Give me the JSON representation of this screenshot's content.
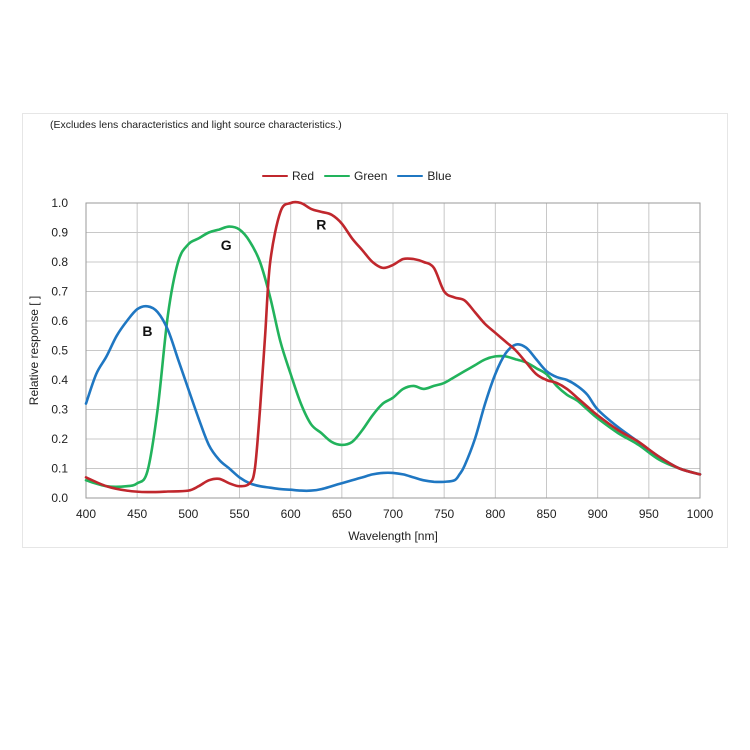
{
  "note": "(Excludes lens characteristics and light source characteristics.)",
  "chart_data": {
    "type": "line",
    "xlabel": "Wavelength [nm]",
    "ylabel": "Relative response [ ]",
    "xlim": [
      400,
      1000
    ],
    "ylim": [
      0.0,
      1.0
    ],
    "xticks": [
      "400",
      "450",
      "500",
      "550",
      "600",
      "650",
      "700",
      "750",
      "800",
      "850",
      "900",
      "950",
      "1000"
    ],
    "yticks": [
      "0.0",
      "0.1",
      "0.2",
      "0.3",
      "0.4",
      "0.5",
      "0.6",
      "0.7",
      "0.8",
      "0.9",
      "1.0"
    ],
    "grid": true,
    "legend_position": "top-center",
    "series": [
      {
        "name": "Red",
        "color": "#c0272d",
        "label": "R",
        "x": [
          400,
          420,
          440,
          460,
          480,
          500,
          510,
          520,
          530,
          540,
          550,
          560,
          565,
          570,
          575,
          580,
          590,
          600,
          610,
          620,
          630,
          640,
          650,
          660,
          670,
          680,
          690,
          700,
          710,
          720,
          730,
          740,
          750,
          760,
          770,
          780,
          790,
          800,
          810,
          820,
          830,
          840,
          850,
          860,
          870,
          880,
          890,
          900,
          920,
          940,
          960,
          980,
          1000
        ],
        "y": [
          0.07,
          0.04,
          0.025,
          0.02,
          0.022,
          0.025,
          0.04,
          0.06,
          0.065,
          0.05,
          0.04,
          0.05,
          0.1,
          0.3,
          0.55,
          0.8,
          0.97,
          1.0,
          1.0,
          0.98,
          0.97,
          0.96,
          0.93,
          0.88,
          0.84,
          0.8,
          0.78,
          0.79,
          0.81,
          0.81,
          0.8,
          0.78,
          0.7,
          0.68,
          0.67,
          0.63,
          0.59,
          0.56,
          0.53,
          0.5,
          0.46,
          0.42,
          0.4,
          0.39,
          0.37,
          0.34,
          0.31,
          0.28,
          0.23,
          0.19,
          0.14,
          0.1,
          0.08
        ]
      },
      {
        "name": "Green",
        "color": "#22b35c",
        "label": "G",
        "x": [
          400,
          420,
          440,
          450,
          460,
          470,
          480,
          490,
          500,
          510,
          520,
          530,
          540,
          550,
          560,
          570,
          580,
          590,
          600,
          610,
          620,
          630,
          640,
          650,
          660,
          670,
          680,
          690,
          700,
          710,
          720,
          730,
          740,
          750,
          760,
          770,
          780,
          790,
          800,
          810,
          820,
          830,
          840,
          850,
          860,
          870,
          880,
          890,
          900,
          920,
          940,
          960,
          980,
          1000
        ],
        "y": [
          0.06,
          0.04,
          0.04,
          0.05,
          0.09,
          0.3,
          0.62,
          0.8,
          0.86,
          0.88,
          0.9,
          0.91,
          0.92,
          0.91,
          0.87,
          0.8,
          0.68,
          0.53,
          0.42,
          0.32,
          0.25,
          0.22,
          0.19,
          0.18,
          0.19,
          0.23,
          0.28,
          0.32,
          0.34,
          0.37,
          0.38,
          0.37,
          0.38,
          0.39,
          0.41,
          0.43,
          0.45,
          0.47,
          0.48,
          0.48,
          0.47,
          0.46,
          0.44,
          0.42,
          0.38,
          0.35,
          0.33,
          0.3,
          0.27,
          0.22,
          0.18,
          0.13,
          0.1,
          0.08
        ]
      },
      {
        "name": "Blue",
        "color": "#1f77c2",
        "label": "B",
        "x": [
          400,
          410,
          420,
          430,
          440,
          450,
          460,
          470,
          480,
          490,
          500,
          510,
          520,
          530,
          540,
          550,
          560,
          570,
          580,
          590,
          600,
          610,
          620,
          630,
          640,
          650,
          660,
          670,
          680,
          690,
          700,
          710,
          720,
          730,
          740,
          750,
          760,
          765,
          770,
          780,
          790,
          800,
          810,
          820,
          830,
          840,
          850,
          860,
          870,
          880,
          890,
          900,
          920,
          940,
          960,
          980,
          1000
        ],
        "y": [
          0.32,
          0.42,
          0.48,
          0.55,
          0.6,
          0.64,
          0.65,
          0.63,
          0.57,
          0.47,
          0.37,
          0.27,
          0.18,
          0.13,
          0.1,
          0.07,
          0.05,
          0.04,
          0.035,
          0.03,
          0.028,
          0.025,
          0.025,
          0.03,
          0.04,
          0.05,
          0.06,
          0.07,
          0.08,
          0.085,
          0.085,
          0.08,
          0.07,
          0.06,
          0.055,
          0.055,
          0.06,
          0.08,
          0.11,
          0.2,
          0.32,
          0.42,
          0.49,
          0.52,
          0.51,
          0.47,
          0.43,
          0.41,
          0.4,
          0.38,
          0.35,
          0.3,
          0.24,
          0.19,
          0.14,
          0.1,
          0.08
        ]
      }
    ],
    "annotations": [
      {
        "text": "R",
        "x": 630,
        "y": 0.91
      },
      {
        "text": "G",
        "x": 537,
        "y": 0.84
      },
      {
        "text": "B",
        "x": 460,
        "y": 0.55
      }
    ]
  }
}
